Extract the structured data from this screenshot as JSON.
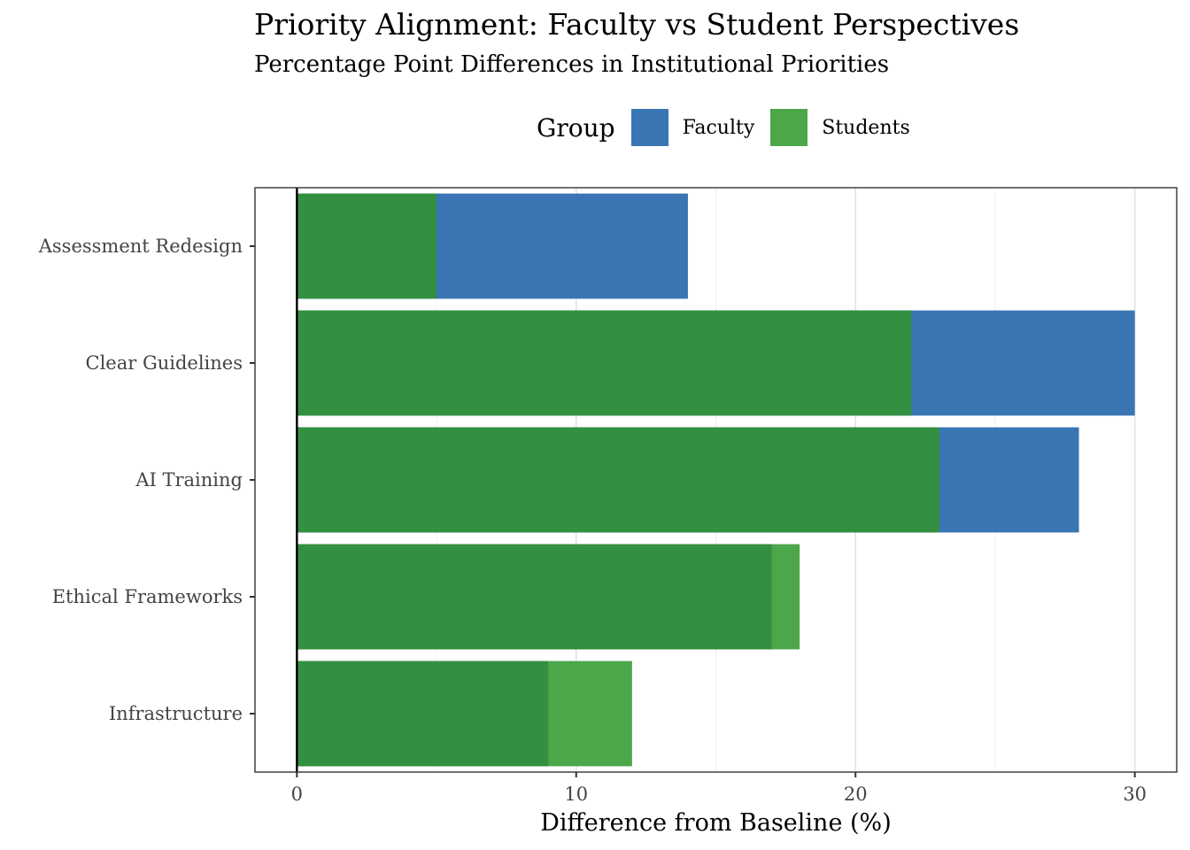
{
  "title": "Priority Alignment: Faculty vs Student Perspectives",
  "subtitle": "Percentage Point Differences in Institutional Priorities",
  "legend": {
    "title": "Group",
    "items": [
      {
        "label": "Faculty",
        "color": "#3a76b4"
      },
      {
        "label": "Students",
        "color": "#4ca64a"
      }
    ]
  },
  "chart_data": {
    "type": "bar",
    "orientation": "horizontal",
    "title": "Priority Alignment: Faculty vs Student Perspectives",
    "subtitle": "Percentage Point Differences in Institutional Priorities",
    "xlabel": "Difference from Baseline (%)",
    "ylabel": "",
    "categories": [
      "Assessment Redesign",
      "Clear Guidelines",
      "AI Training",
      "Ethical Frameworks",
      "Infrastructure"
    ],
    "series": [
      {
        "name": "Faculty",
        "values": [
          14,
          30,
          28,
          17,
          9
        ],
        "color": "#3a76b4"
      },
      {
        "name": "Students",
        "values": [
          5,
          22,
          23,
          18,
          12
        ],
        "color": "#4ca64a"
      }
    ],
    "overlap_color": "#339040",
    "xlim": [
      -1.5,
      31.5
    ],
    "xticks": [
      0,
      10,
      20,
      30
    ],
    "grid": true,
    "legend_position": "top"
  }
}
